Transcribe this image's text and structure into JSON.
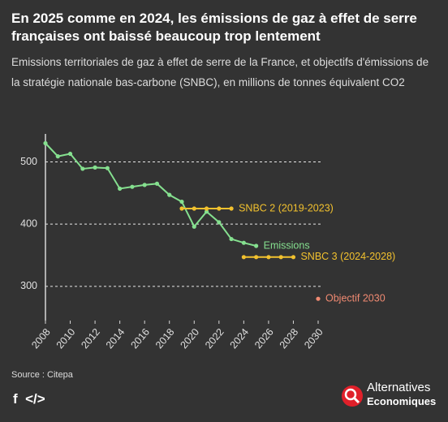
{
  "chart_data": {
    "type": "line",
    "title": "En 2025 comme en 2024, les émissions de gaz à effet de serre françaises ont baissé beaucoup trop lentement",
    "subtitle": "Emissions territoriales de gaz à effet de serre de la France, et objectifs d'émissions de la stratégie nationale bas-carbone (SNBC), en millions de tonnes équivalent CO2",
    "source": "Source : Citepa",
    "xlim": [
      2008,
      2030
    ],
    "xticks": [
      2008,
      2010,
      2012,
      2014,
      2016,
      2018,
      2020,
      2022,
      2024,
      2026,
      2028,
      2030
    ],
    "ylim": [
      245,
      545
    ],
    "yticks": [
      300,
      400,
      500
    ],
    "grid": true,
    "series": [
      {
        "name": "Emissions",
        "color": "#85e08f",
        "markers": true,
        "x": [
          2008,
          2009,
          2010,
          2011,
          2012,
          2013,
          2014,
          2015,
          2016,
          2017,
          2018,
          2019,
          2020,
          2021,
          2022,
          2023,
          2024,
          2025
        ],
        "values": [
          530,
          509,
          513,
          489,
          491,
          490,
          457,
          460,
          463,
          465,
          447,
          436,
          396,
          420,
          403,
          376,
          370,
          365
        ]
      },
      {
        "name": "SNBC 2 (2019-2023)",
        "color": "#f2c12e",
        "markers": true,
        "x": [
          2019,
          2020,
          2021,
          2022,
          2023
        ],
        "values": [
          425,
          425,
          425,
          425,
          425
        ]
      },
      {
        "name": "SNBC 3 (2024-2028)",
        "color": "#f2c12e",
        "markers": true,
        "x": [
          2024,
          2025,
          2026,
          2027,
          2028
        ],
        "values": [
          347,
          347,
          347,
          347,
          347
        ]
      },
      {
        "name": "Objectif 2030",
        "color": "#f08a72",
        "markers": true,
        "x": [
          2030
        ],
        "values": [
          280
        ]
      }
    ]
  },
  "brand": {
    "line1": "Alternatives",
    "line2": "Economiques"
  }
}
